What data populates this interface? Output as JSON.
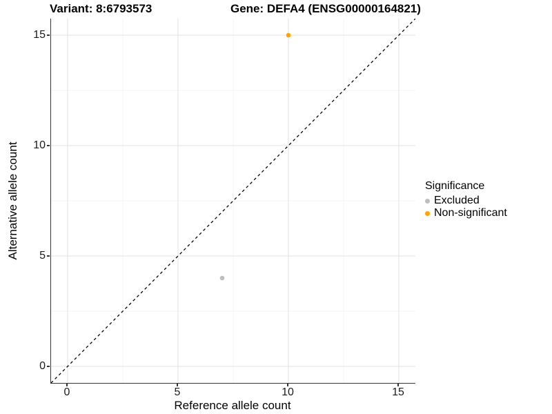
{
  "figure": {
    "titles": {
      "variant": "Variant: 8:6793573",
      "gene": "Gene: DEFA4 (ENSG00000164821)"
    },
    "axes": {
      "x": {
        "label": "Reference allele count",
        "ticks": [
          "0",
          "5",
          "10",
          "15"
        ],
        "tick_values": [
          0,
          5,
          10,
          15
        ],
        "minor_values": [
          2.5,
          7.5,
          12.5
        ],
        "range": [
          0,
          15
        ]
      },
      "y": {
        "label": "Alternative allele count",
        "ticks": [
          "0",
          "5",
          "10",
          "15"
        ],
        "tick_values": [
          0,
          5,
          10,
          15
        ],
        "minor_values": [
          2.5,
          7.5,
          12.5
        ],
        "range": [
          0,
          15
        ]
      }
    },
    "legend": {
      "title": "Significance",
      "items": [
        {
          "label": "Excluded",
          "color": "#BEBEBE"
        },
        {
          "label": "Non-significant",
          "color": "#FFA500"
        }
      ]
    },
    "colors": {
      "grid_major": "#e3e3e3",
      "grid_minor": "#f0f0f0",
      "axis_line": "#333333",
      "identity_line": "#000000"
    }
  },
  "chart_data": {
    "type": "scatter",
    "title": "Variant: 8:6793573 / Gene: DEFA4 (ENSG00000164821)",
    "xlabel": "Reference allele count",
    "ylabel": "Alternative allele count",
    "xlim": [
      0,
      15
    ],
    "ylim": [
      0,
      15
    ],
    "grid": true,
    "legend_position": "right",
    "legend_title": "Significance",
    "reference_line": {
      "type": "identity",
      "slope": 1,
      "intercept": 0,
      "style": "dashed",
      "color": "#000000"
    },
    "series": [
      {
        "name": "Excluded",
        "color": "#BEBEBE",
        "points": [
          [
            7,
            4
          ]
        ]
      },
      {
        "name": "Non-significant",
        "color": "#FFA500",
        "points": [
          [
            10,
            15
          ]
        ]
      }
    ]
  }
}
